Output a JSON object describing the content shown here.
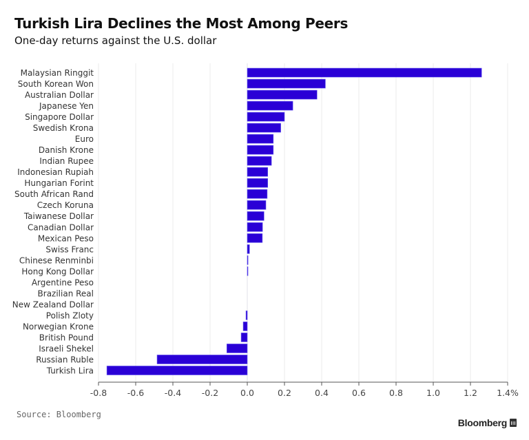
{
  "chart_data": {
    "type": "bar",
    "orientation": "horizontal",
    "title": "Turkish Lira Declines the Most Among Peers",
    "subtitle": "One-day returns against the U.S. dollar",
    "xlabel": "",
    "ylabel": "",
    "xlim": [
      -0.8,
      1.4
    ],
    "x_ticks": [
      -0.8,
      -0.6,
      -0.4,
      -0.2,
      0.0,
      0.2,
      0.4,
      0.6,
      0.8,
      1.0,
      1.2,
      1.4
    ],
    "x_tick_labels": [
      "-0.8",
      "-0.6",
      "-0.4",
      "-0.2",
      "0.0",
      "0.2",
      "0.4",
      "0.6",
      "0.8",
      "1.0",
      "1.2",
      "1.4%"
    ],
    "grid": "vertical",
    "unit": "%",
    "bar_color": "#2a00d6",
    "categories": [
      "Malaysian Ringgit",
      "South Korean Won",
      "Australian Dollar",
      "Japanese Yen",
      "Singapore Dollar",
      "Swedish Krona",
      "Euro",
      "Danish Krone",
      "Indian Rupee",
      "Indonesian Rupiah",
      "Hungarian Forint",
      "South African Rand",
      "Czech Koruna",
      "Taiwanese Dollar",
      "Canadian Dollar",
      "Mexican Peso",
      "Swiss Franc",
      "Chinese Renminbi",
      "Hong Kong Dollar",
      "Argentine Peso",
      "Brazilian Real",
      "New Zealand Dollar",
      "Polish Zloty",
      "Norwegian Krone",
      "British Pound",
      "Israeli Shekel",
      "Russian Ruble",
      "Turkish Lira"
    ],
    "values": [
      1.26,
      0.42,
      0.375,
      0.245,
      0.2,
      0.18,
      0.14,
      0.14,
      0.13,
      0.11,
      0.11,
      0.107,
      0.1,
      0.09,
      0.082,
      0.081,
      0.012,
      0.004,
      0.002,
      0.0,
      0.0,
      0.0,
      -0.007,
      -0.022,
      -0.033,
      -0.11,
      -0.485,
      -0.755
    ],
    "source": "Source: Bloomberg"
  },
  "footer": {
    "source": "Source: Bloomberg",
    "brand": "Bloomberg"
  }
}
